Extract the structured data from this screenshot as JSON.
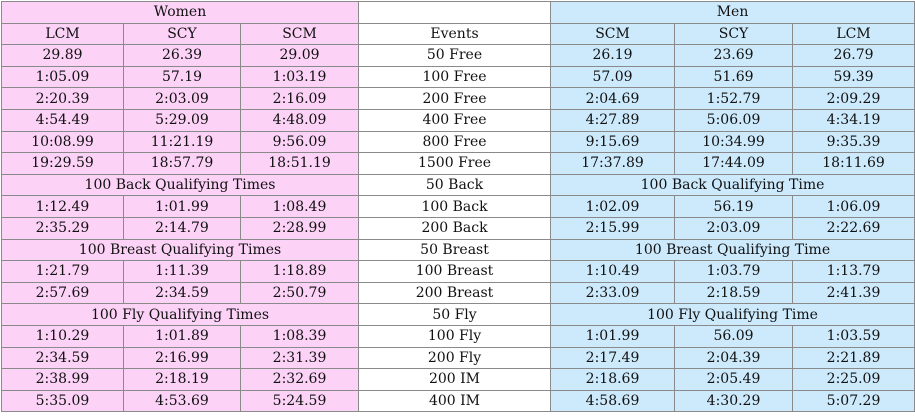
{
  "header": {
    "women": "Women",
    "men": "Men",
    "events": "Events",
    "women_cols": [
      "LCM",
      "SCY",
      "SCM"
    ],
    "men_cols": [
      "SCM",
      "SCY",
      "LCM"
    ]
  },
  "colors": {
    "women_bg": "#fcd3f7",
    "men_bg": "#cdeafc",
    "events_bg": "#ffffff",
    "border": "#8a8a8a"
  },
  "rows": [
    {
      "type": "data",
      "women": [
        "29.89",
        "26.39",
        "29.09"
      ],
      "event": "50 Free",
      "men": [
        "26.19",
        "23.69",
        "26.79"
      ]
    },
    {
      "type": "data",
      "women": [
        "1:05.09",
        "57.19",
        "1:03.19"
      ],
      "event": "100 Free",
      "men": [
        "57.09",
        "51.69",
        "59.39"
      ]
    },
    {
      "type": "data",
      "women": [
        "2:20.39",
        "2:03.09",
        "2:16.09"
      ],
      "event": "200 Free",
      "men": [
        "2:04.69",
        "1:52.79",
        "2:09.29"
      ]
    },
    {
      "type": "data",
      "women": [
        "4:54.49",
        "5:29.09",
        "4:48.09"
      ],
      "event": "400 Free",
      "men": [
        "4:27.89",
        "5:06.09",
        "4:34.19"
      ]
    },
    {
      "type": "data",
      "women": [
        "10:08.99",
        "11:21.19",
        "9:56.09"
      ],
      "event": "800 Free",
      "men": [
        "9:15.69",
        "10:34.99",
        "9:35.39"
      ]
    },
    {
      "type": "data",
      "women": [
        "19:29.59",
        "18:57.79",
        "18:51.19"
      ],
      "event": "1500 Free",
      "men": [
        "17:37.89",
        "17:44.09",
        "18:11.69"
      ]
    },
    {
      "type": "section",
      "women": "100 Back Qualifying Times",
      "event": "50 Back",
      "men": "100 Back Qualifying Time"
    },
    {
      "type": "data",
      "women": [
        "1:12.49",
        "1:01.99",
        "1:08.49"
      ],
      "event": "100 Back",
      "men": [
        "1:02.09",
        "56.19",
        "1:06.09"
      ]
    },
    {
      "type": "data",
      "women": [
        "2:35.29",
        "2:14.79",
        "2:28.99"
      ],
      "event": "200 Back",
      "men": [
        "2:15.99",
        "2:03.09",
        "2:22.69"
      ]
    },
    {
      "type": "section",
      "women": "100 Breast Qualifying Times",
      "event": "50 Breast",
      "men": "100 Breast Qualifying Time"
    },
    {
      "type": "data",
      "women": [
        "1:21.79",
        "1:11.39",
        "1:18.89"
      ],
      "event": "100 Breast",
      "men": [
        "1:10.49",
        "1:03.79",
        "1:13.79"
      ]
    },
    {
      "type": "data",
      "women": [
        "2:57.69",
        "2:34.59",
        "2:50.79"
      ],
      "event": "200 Breast",
      "men": [
        "2:33.09",
        "2:18.59",
        "2:41.39"
      ]
    },
    {
      "type": "section",
      "women": "100 Fly Qualifying Times",
      "event": "50 Fly",
      "men": "100 Fly Qualifying Time"
    },
    {
      "type": "data",
      "women": [
        "1:10.29",
        "1:01.89",
        "1:08.39"
      ],
      "event": "100 Fly",
      "men": [
        "1:01.99",
        "56.09",
        "1:03.59"
      ]
    },
    {
      "type": "data",
      "women": [
        "2:34.59",
        "2:16.99",
        "2:31.39"
      ],
      "event": "200 Fly",
      "men": [
        "2:17.49",
        "2:04.39",
        "2:21.89"
      ]
    },
    {
      "type": "data",
      "women": [
        "2:38.99",
        "2:18.19",
        "2:32.69"
      ],
      "event": "200 IM",
      "men": [
        "2:18.69",
        "2:05.49",
        "2:25.09"
      ]
    },
    {
      "type": "data",
      "women": [
        "5:35.09",
        "4:53.69",
        "5:24.59"
      ],
      "event": "400 IM",
      "men": [
        "4:58.69",
        "4:30.29",
        "5:07.29"
      ]
    }
  ]
}
